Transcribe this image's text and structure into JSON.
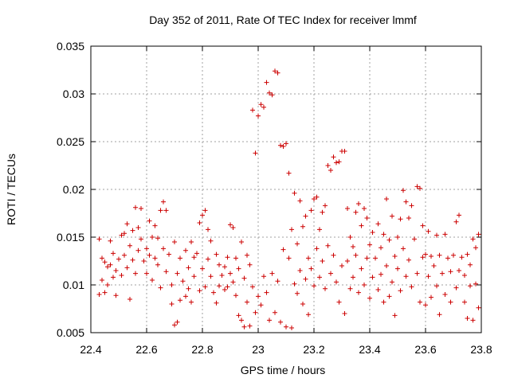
{
  "chart_data": {
    "type": "scatter",
    "title": "Day 352 of 2011, Rate Of TEC Index for receiver lmmf",
    "xlabel": "GPS time / hours",
    "ylabel": "ROTI / TECUs",
    "xlim": [
      22.4,
      23.8
    ],
    "ylim": [
      0.005,
      0.035
    ],
    "grid": true,
    "marker": "plus",
    "series_color": "#cc0000",
    "x_ticks": [
      {
        "value": 22.4,
        "label": "22.4"
      },
      {
        "value": 22.6,
        "label": "22.6"
      },
      {
        "value": 22.8,
        "label": "22.8"
      },
      {
        "value": 23.0,
        "label": "23"
      },
      {
        "value": 23.2,
        "label": "23.2"
      },
      {
        "value": 23.4,
        "label": "23.4"
      },
      {
        "value": 23.6,
        "label": "23.6"
      },
      {
        "value": 23.8,
        "label": "23.8"
      }
    ],
    "y_ticks": [
      {
        "value": 0.005,
        "label": "0.005"
      },
      {
        "value": 0.01,
        "label": "0.01"
      },
      {
        "value": 0.015,
        "label": "0.015"
      },
      {
        "value": 0.02,
        "label": "0.02"
      },
      {
        "value": 0.025,
        "label": "0.025"
      },
      {
        "value": 0.03,
        "label": "0.03"
      },
      {
        "value": 0.035,
        "label": "0.035"
      }
    ],
    "series": [
      {
        "name": "ROTI",
        "points": [
          [
            22.43,
            0.0148
          ],
          [
            22.43,
            0.009
          ],
          [
            22.44,
            0.0128
          ],
          [
            22.44,
            0.0105
          ],
          [
            22.45,
            0.0124
          ],
          [
            22.45,
            0.0092
          ],
          [
            22.46,
            0.0119
          ],
          [
            22.46,
            0.01
          ],
          [
            22.47,
            0.0146
          ],
          [
            22.47,
            0.0121
          ],
          [
            22.48,
            0.0133
          ],
          [
            22.48,
            0.0108
          ],
          [
            22.49,
            0.0115
          ],
          [
            22.49,
            0.0089
          ],
          [
            22.5,
            0.0127
          ],
          [
            22.51,
            0.0152
          ],
          [
            22.51,
            0.011
          ],
          [
            22.52,
            0.0154
          ],
          [
            22.52,
            0.0131
          ],
          [
            22.53,
            0.0118
          ],
          [
            22.53,
            0.0164
          ],
          [
            22.54,
            0.0141
          ],
          [
            22.54,
            0.0085
          ],
          [
            22.55,
            0.0157
          ],
          [
            22.55,
            0.0126
          ],
          [
            22.56,
            0.0181
          ],
          [
            22.56,
            0.0112
          ],
          [
            22.57,
            0.016
          ],
          [
            22.57,
            0.0136
          ],
          [
            22.58,
            0.018
          ],
          [
            22.58,
            0.0148
          ],
          [
            22.59,
            0.0125
          ],
          [
            22.6,
            0.0138
          ],
          [
            22.6,
            0.0112
          ],
          [
            22.61,
            0.0167
          ],
          [
            22.61,
            0.0131
          ],
          [
            22.62,
            0.015
          ],
          [
            22.62,
            0.0105
          ],
          [
            22.63,
            0.0162
          ],
          [
            22.63,
            0.0128
          ],
          [
            22.64,
            0.0149
          ],
          [
            22.64,
            0.0121
          ],
          [
            22.65,
            0.0178
          ],
          [
            22.65,
            0.0097
          ],
          [
            22.66,
            0.0187
          ],
          [
            22.66,
            0.0138
          ],
          [
            22.67,
            0.0114
          ],
          [
            22.67,
            0.0178
          ],
          [
            22.68,
            0.0132
          ],
          [
            22.69,
            0.01
          ],
          [
            22.69,
            0.008
          ],
          [
            22.7,
            0.0145
          ],
          [
            22.7,
            0.0058
          ],
          [
            22.71,
            0.0112
          ],
          [
            22.71,
            0.0061
          ],
          [
            22.72,
            0.0128
          ],
          [
            22.72,
            0.0084
          ],
          [
            22.73,
            0.0104
          ],
          [
            22.74,
            0.0136
          ],
          [
            22.74,
            0.0088
          ],
          [
            22.75,
            0.0118
          ],
          [
            22.75,
            0.0096
          ],
          [
            22.76,
            0.0145
          ],
          [
            22.76,
            0.0082
          ],
          [
            22.77,
            0.0129
          ],
          [
            22.77,
            0.0109
          ],
          [
            22.78,
            0.0133
          ],
          [
            22.79,
            0.0165
          ],
          [
            22.79,
            0.0094
          ],
          [
            22.8,
            0.0173
          ],
          [
            22.8,
            0.0117
          ],
          [
            22.81,
            0.0178
          ],
          [
            22.81,
            0.0098
          ],
          [
            22.82,
            0.0158
          ],
          [
            22.82,
            0.0127
          ],
          [
            22.83,
            0.0146
          ],
          [
            22.83,
            0.0109
          ],
          [
            22.84,
            0.0092
          ],
          [
            22.85,
            0.0132
          ],
          [
            22.85,
            0.0081
          ],
          [
            22.86,
            0.0121
          ],
          [
            22.86,
            0.0099
          ],
          [
            22.87,
            0.011
          ],
          [
            22.88,
            0.0119
          ],
          [
            22.88,
            0.0095
          ],
          [
            22.89,
            0.0098
          ],
          [
            22.89,
            0.0129
          ],
          [
            22.9,
            0.0112
          ],
          [
            22.9,
            0.0163
          ],
          [
            22.91,
            0.016
          ],
          [
            22.91,
            0.0103
          ],
          [
            22.92,
            0.0128
          ],
          [
            22.92,
            0.0089
          ],
          [
            22.93,
            0.0117
          ],
          [
            22.93,
            0.0068
          ],
          [
            22.94,
            0.0145
          ],
          [
            22.94,
            0.0063
          ],
          [
            22.95,
            0.0107
          ],
          [
            22.95,
            0.0056
          ],
          [
            22.96,
            0.0131
          ],
          [
            22.96,
            0.0082
          ],
          [
            22.97,
            0.0121
          ],
          [
            22.97,
            0.0057
          ],
          [
            22.98,
            0.0283
          ],
          [
            22.98,
            0.0098
          ],
          [
            22.99,
            0.0238
          ],
          [
            22.99,
            0.0071
          ],
          [
            23.0,
            0.0277
          ],
          [
            23.0,
            0.0088
          ],
          [
            23.01,
            0.0289
          ],
          [
            23.01,
            0.0079
          ],
          [
            23.02,
            0.0286
          ],
          [
            23.02,
            0.0109
          ],
          [
            23.03,
            0.0312
          ],
          [
            23.03,
            0.0092
          ],
          [
            23.04,
            0.0301
          ],
          [
            23.04,
            0.0063
          ],
          [
            23.05,
            0.0299
          ],
          [
            23.05,
            0.0112
          ],
          [
            23.06,
            0.0324
          ],
          [
            23.06,
            0.0071
          ],
          [
            23.07,
            0.0322
          ],
          [
            23.07,
            0.0104
          ],
          [
            23.08,
            0.0246
          ],
          [
            23.08,
            0.0061
          ],
          [
            23.09,
            0.0245
          ],
          [
            23.09,
            0.0137
          ],
          [
            23.1,
            0.0248
          ],
          [
            23.1,
            0.0056
          ],
          [
            23.11,
            0.0217
          ],
          [
            23.11,
            0.0128
          ],
          [
            23.12,
            0.0158
          ],
          [
            23.12,
            0.0055
          ],
          [
            23.13,
            0.0196
          ],
          [
            23.13,
            0.0101
          ],
          [
            23.14,
            0.0143
          ],
          [
            23.14,
            0.0091
          ],
          [
            23.15,
            0.0188
          ],
          [
            23.15,
            0.0115
          ],
          [
            23.16,
            0.0161
          ],
          [
            23.16,
            0.008
          ],
          [
            23.17,
            0.0172
          ],
          [
            23.17,
            0.0106
          ],
          [
            23.18,
            0.0128
          ],
          [
            23.18,
            0.0069
          ],
          [
            23.19,
            0.0178
          ],
          [
            23.19,
            0.0117
          ],
          [
            23.2,
            0.019
          ],
          [
            23.2,
            0.0099
          ],
          [
            23.21,
            0.0192
          ],
          [
            23.21,
            0.0138
          ],
          [
            23.22,
            0.0158
          ],
          [
            23.22,
            0.0108
          ],
          [
            23.23,
            0.0176
          ],
          [
            23.23,
            0.0125
          ],
          [
            23.24,
            0.0183
          ],
          [
            23.24,
            0.0096
          ],
          [
            23.25,
            0.0225
          ],
          [
            23.25,
            0.0141
          ],
          [
            23.26,
            0.022
          ],
          [
            23.26,
            0.0112
          ],
          [
            23.27,
            0.0234
          ],
          [
            23.27,
            0.0131
          ],
          [
            23.28,
            0.0228
          ],
          [
            23.28,
            0.0103
          ],
          [
            23.29,
            0.0229
          ],
          [
            23.29,
            0.0082
          ],
          [
            23.3,
            0.024
          ],
          [
            23.3,
            0.012
          ],
          [
            23.31,
            0.024
          ],
          [
            23.31,
            0.007
          ],
          [
            23.32,
            0.018
          ],
          [
            23.32,
            0.0125
          ],
          [
            23.33,
            0.015
          ],
          [
            23.33,
            0.0096
          ],
          [
            23.34,
            0.014
          ],
          [
            23.34,
            0.0108
          ],
          [
            23.35,
            0.0176
          ],
          [
            23.35,
            0.0131
          ],
          [
            23.36,
            0.0185
          ],
          [
            23.36,
            0.0092
          ],
          [
            23.37,
            0.0162
          ],
          [
            23.37,
            0.0117
          ],
          [
            23.38,
            0.018
          ],
          [
            23.38,
            0.01
          ],
          [
            23.39,
            0.017
          ],
          [
            23.39,
            0.0128
          ],
          [
            23.4,
            0.0142
          ],
          [
            23.4,
            0.0086
          ],
          [
            23.41,
            0.0155
          ],
          [
            23.41,
            0.0108
          ],
          [
            23.42,
            0.0128
          ],
          [
            23.43,
            0.0164
          ],
          [
            23.43,
            0.0095
          ],
          [
            23.44,
            0.0139
          ],
          [
            23.44,
            0.0111
          ],
          [
            23.45,
            0.0153
          ],
          [
            23.45,
            0.0082
          ],
          [
            23.46,
            0.019
          ],
          [
            23.46,
            0.012
          ],
          [
            23.47,
            0.0147
          ],
          [
            23.47,
            0.0088
          ],
          [
            23.48,
            0.0172
          ],
          [
            23.48,
            0.0103
          ],
          [
            23.49,
            0.013
          ],
          [
            23.49,
            0.0068
          ],
          [
            23.5,
            0.015
          ],
          [
            23.5,
            0.0117
          ],
          [
            23.51,
            0.0169
          ],
          [
            23.51,
            0.0094
          ],
          [
            23.52,
            0.0199
          ],
          [
            23.52,
            0.0138
          ],
          [
            23.53,
            0.0187
          ],
          [
            23.53,
            0.0109
          ],
          [
            23.54,
            0.017
          ],
          [
            23.54,
            0.0126
          ],
          [
            23.55,
            0.0183
          ],
          [
            23.55,
            0.0098
          ],
          [
            23.56,
            0.0148
          ],
          [
            23.57,
            0.0203
          ],
          [
            23.57,
            0.0112
          ],
          [
            23.58,
            0.0201
          ],
          [
            23.58,
            0.0082
          ],
          [
            23.59,
            0.0162
          ],
          [
            23.59,
            0.0129
          ],
          [
            23.6,
            0.0132
          ],
          [
            23.6,
            0.0079
          ],
          [
            23.61,
            0.0156
          ],
          [
            23.61,
            0.0109
          ],
          [
            23.62,
            0.013
          ],
          [
            23.62,
            0.0087
          ],
          [
            23.63,
            0.012
          ],
          [
            23.64,
            0.0152
          ],
          [
            23.64,
            0.0099
          ],
          [
            23.65,
            0.0131
          ],
          [
            23.65,
            0.0069
          ],
          [
            23.66,
            0.0112
          ],
          [
            23.67,
            0.0153
          ],
          [
            23.67,
            0.009
          ],
          [
            23.68,
            0.0128
          ],
          [
            23.69,
            0.0114
          ],
          [
            23.69,
            0.0082
          ],
          [
            23.7,
            0.0131
          ],
          [
            23.71,
            0.0166
          ],
          [
            23.71,
            0.0097
          ],
          [
            23.72,
            0.0173
          ],
          [
            23.72,
            0.0115
          ],
          [
            23.73,
            0.0129
          ],
          [
            23.74,
            0.011
          ],
          [
            23.74,
            0.0082
          ],
          [
            23.75,
            0.0132
          ],
          [
            23.75,
            0.0065
          ],
          [
            23.76,
            0.0121
          ],
          [
            23.76,
            0.0099
          ],
          [
            23.77,
            0.0148
          ],
          [
            23.77,
            0.0063
          ],
          [
            23.78,
            0.0139
          ],
          [
            23.78,
            0.0101
          ],
          [
            23.79,
            0.0153
          ],
          [
            23.79,
            0.0076
          ]
        ]
      }
    ]
  }
}
